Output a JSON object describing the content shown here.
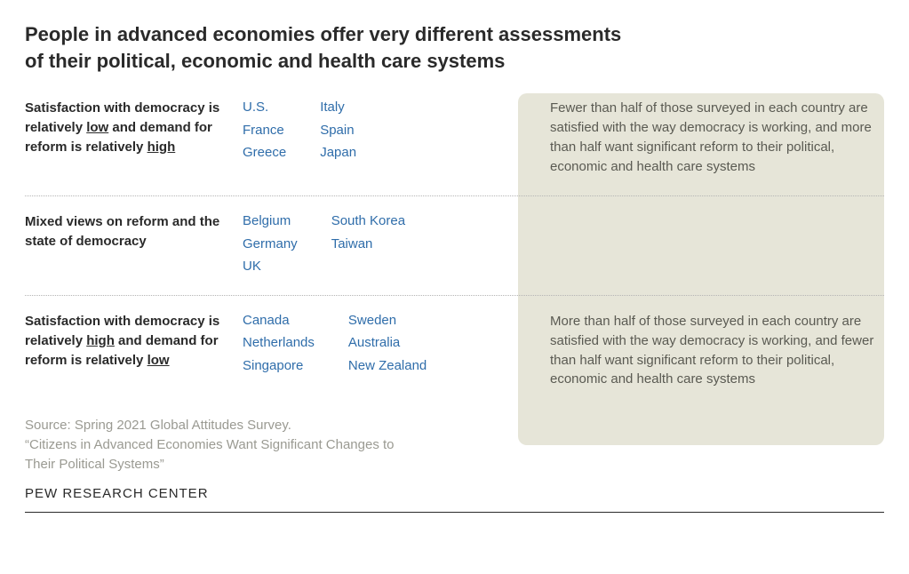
{
  "title": "People in advanced economies offer very different assessments of their political, economic and health care systems",
  "colors": {
    "country_link": "#2f6daa",
    "shade_bg": "#e6e5d8",
    "text": "#2a2a2a",
    "muted": "#9a9a92",
    "desc_text": "#5a5a52"
  },
  "rows": [
    {
      "label_pre": "Satisfaction with democracy is relatively ",
      "label_u1": "low",
      "label_mid": " and demand for reform is relatively ",
      "label_u2": "high",
      "countries_col1": [
        "U.S.",
        "France",
        "Greece"
      ],
      "countries_col2": [
        "Italy",
        "Spain",
        "Japan"
      ],
      "description": "Fewer than half of those surveyed in each country are satisfied with the way democracy is working, and more than half want significant reform to their political, economic and health care systems"
    },
    {
      "label_plain": "Mixed views on reform and the state of democracy",
      "countries_col1": [
        "Belgium",
        "Germany",
        "UK"
      ],
      "countries_col2": [
        "South Korea",
        "Taiwan"
      ],
      "description": ""
    },
    {
      "label_pre": "Satisfaction with democracy is relatively ",
      "label_u1": "high",
      "label_mid": " and demand for reform is relatively ",
      "label_u2": "low",
      "countries_col1": [
        "Canada",
        "Netherlands",
        "Singapore"
      ],
      "countries_col2": [
        "Sweden",
        "Australia",
        "New Zealand"
      ],
      "description": "More than half of those surveyed in each country are satisfied with the way democracy is working, and fewer than half want significant reform to their political, economic and health care systems"
    }
  ],
  "source_line1": "Source: Spring 2021 Global Attitudes Survey.",
  "source_line2": "“Citizens in Advanced Economies Want Significant Changes to Their Political Systems”",
  "attribution": "PEW RESEARCH CENTER"
}
